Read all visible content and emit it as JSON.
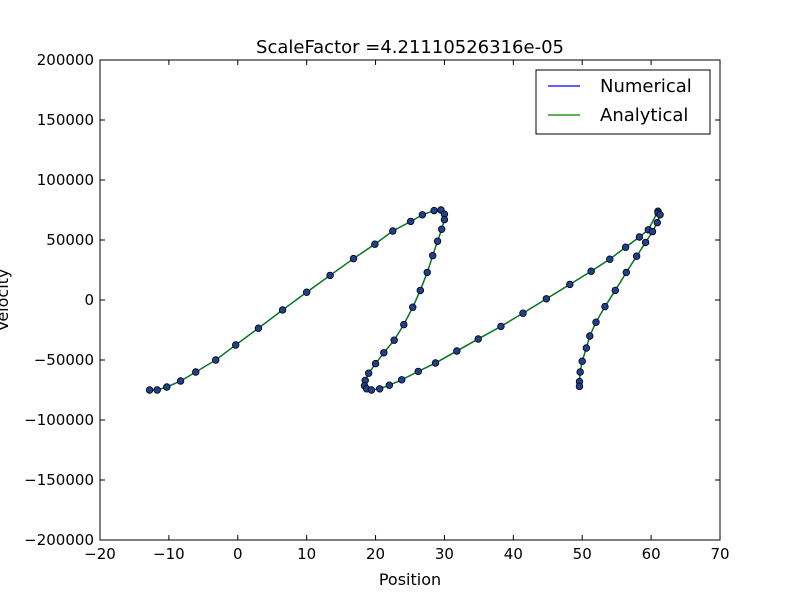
{
  "chart_data": {
    "type": "line",
    "title": "ScaleFactor =4.21110526316e-05",
    "xlabel": "Position",
    "ylabel": "Velocity",
    "xlim": [
      -20,
      70
    ],
    "ylim": [
      -200000,
      200000
    ],
    "xticks": [
      -20,
      -10,
      0,
      10,
      20,
      30,
      40,
      50,
      60,
      70
    ],
    "yticks": [
      -200000,
      -150000,
      -100000,
      -50000,
      0,
      50000,
      100000,
      150000,
      200000
    ],
    "xtick_labels": [
      "−20",
      "−10",
      "0",
      "10",
      "20",
      "30",
      "40",
      "50",
      "60",
      "70"
    ],
    "ytick_labels": [
      "−200000",
      "−150000",
      "−100000",
      "−50000",
      "0",
      "50000",
      "100000",
      "150000",
      "200000"
    ],
    "grid": false,
    "legend_position": "top-right",
    "series": [
      {
        "name": "Numerical",
        "color": "#0000ff",
        "points": [
          [
            -12.8,
            -75000
          ],
          [
            -11.7,
            -75000
          ],
          [
            -10.3,
            -72500
          ],
          [
            -8.3,
            -67500
          ],
          [
            -6.1,
            -60000
          ],
          [
            -3.2,
            -50000
          ],
          [
            -0.3,
            -37500
          ],
          [
            3.0,
            -23500
          ],
          [
            6.5,
            -8300
          ],
          [
            10.0,
            6500
          ],
          [
            13.4,
            20500
          ],
          [
            16.8,
            34500
          ],
          [
            19.9,
            46500
          ],
          [
            22.5,
            57500
          ],
          [
            25.1,
            65500
          ],
          [
            26.8,
            71000
          ],
          [
            28.5,
            74500
          ],
          [
            29.5,
            75000
          ],
          [
            30.0,
            71500
          ],
          [
            30.0,
            67000
          ],
          [
            29.6,
            59000
          ],
          [
            29.0,
            49000
          ],
          [
            28.3,
            37000
          ],
          [
            27.5,
            23000
          ],
          [
            26.5,
            8000
          ],
          [
            25.4,
            -6000
          ],
          [
            24.1,
            -20500
          ],
          [
            22.7,
            -33500
          ],
          [
            21.2,
            -44000
          ],
          [
            20.0,
            -53000
          ],
          [
            19.0,
            -61000
          ],
          [
            18.5,
            -67000
          ],
          [
            18.4,
            -71500
          ],
          [
            18.7,
            -74000
          ],
          [
            19.4,
            -75000
          ],
          [
            20.6,
            -74000
          ],
          [
            22.0,
            -71000
          ],
          [
            23.8,
            -66500
          ],
          [
            26.2,
            -59500
          ],
          [
            28.7,
            -52500
          ],
          [
            31.8,
            -42500
          ],
          [
            34.9,
            -32500
          ],
          [
            38.2,
            -22000
          ],
          [
            41.4,
            -11000
          ],
          [
            44.8,
            1000
          ],
          [
            48.2,
            13000
          ],
          [
            51.3,
            24000
          ],
          [
            54.0,
            34000
          ],
          [
            56.3,
            44000
          ],
          [
            58.3,
            52500
          ],
          [
            59.6,
            58500
          ],
          [
            61.0,
            74000
          ],
          [
            61.0,
            72500
          ],
          [
            61.3,
            71000
          ],
          [
            60.9,
            64500
          ],
          [
            60.2,
            57000
          ],
          [
            59.2,
            48000
          ],
          [
            57.9,
            36500
          ],
          [
            56.4,
            23000
          ],
          [
            54.8,
            8000
          ],
          [
            53.3,
            -5500
          ],
          [
            52.0,
            -18500
          ],
          [
            51.1,
            -30000
          ],
          [
            50.6,
            -40000
          ],
          [
            50.0,
            -51000
          ],
          [
            49.7,
            -60000
          ],
          [
            49.6,
            -68000
          ],
          [
            49.6,
            -72000
          ]
        ]
      },
      {
        "name": "Analytical",
        "color": "#008000",
        "points": [
          [
            -12.8,
            -75000
          ],
          [
            -11.7,
            -75000
          ],
          [
            -10.3,
            -72500
          ],
          [
            -8.3,
            -67500
          ],
          [
            -6.1,
            -60000
          ],
          [
            -3.2,
            -50000
          ],
          [
            -0.3,
            -37500
          ],
          [
            3.0,
            -23500
          ],
          [
            6.5,
            -8300
          ],
          [
            10.0,
            6500
          ],
          [
            13.4,
            20500
          ],
          [
            16.8,
            34500
          ],
          [
            19.9,
            46500
          ],
          [
            22.5,
            57500
          ],
          [
            25.1,
            65500
          ],
          [
            26.8,
            71000
          ],
          [
            28.5,
            74500
          ],
          [
            29.5,
            75000
          ],
          [
            30.0,
            71500
          ],
          [
            30.0,
            67000
          ],
          [
            29.6,
            59000
          ],
          [
            29.0,
            49000
          ],
          [
            28.3,
            37000
          ],
          [
            27.5,
            23000
          ],
          [
            26.5,
            8000
          ],
          [
            25.4,
            -6000
          ],
          [
            24.1,
            -20500
          ],
          [
            22.7,
            -33500
          ],
          [
            21.2,
            -44000
          ],
          [
            20.0,
            -53000
          ],
          [
            19.0,
            -61000
          ],
          [
            18.5,
            -67000
          ],
          [
            18.4,
            -71500
          ],
          [
            18.7,
            -74000
          ],
          [
            19.4,
            -75000
          ],
          [
            20.6,
            -74000
          ],
          [
            22.0,
            -71000
          ],
          [
            23.8,
            -66500
          ],
          [
            26.2,
            -59500
          ],
          [
            28.7,
            -52500
          ],
          [
            31.8,
            -42500
          ],
          [
            34.9,
            -32500
          ],
          [
            38.2,
            -22000
          ],
          [
            41.4,
            -11000
          ],
          [
            44.8,
            1000
          ],
          [
            48.2,
            13000
          ],
          [
            51.3,
            24000
          ],
          [
            54.0,
            34000
          ],
          [
            56.3,
            44000
          ],
          [
            58.3,
            52500
          ],
          [
            59.6,
            58500
          ],
          [
            61.0,
            74000
          ],
          [
            61.0,
            72500
          ],
          [
            61.3,
            71000
          ],
          [
            60.9,
            64500
          ],
          [
            60.2,
            57000
          ],
          [
            59.2,
            48000
          ],
          [
            57.9,
            36500
          ],
          [
            56.4,
            23000
          ],
          [
            54.8,
            8000
          ],
          [
            53.3,
            -5500
          ],
          [
            52.0,
            -18500
          ],
          [
            51.1,
            -30000
          ],
          [
            50.6,
            -40000
          ],
          [
            50.0,
            -51000
          ],
          [
            49.7,
            -60000
          ],
          [
            49.6,
            -68000
          ],
          [
            49.6,
            -72000
          ]
        ]
      }
    ],
    "marker_style": {
      "color": "#1f3f8f",
      "edge": "#000000",
      "shape": "circle"
    }
  }
}
